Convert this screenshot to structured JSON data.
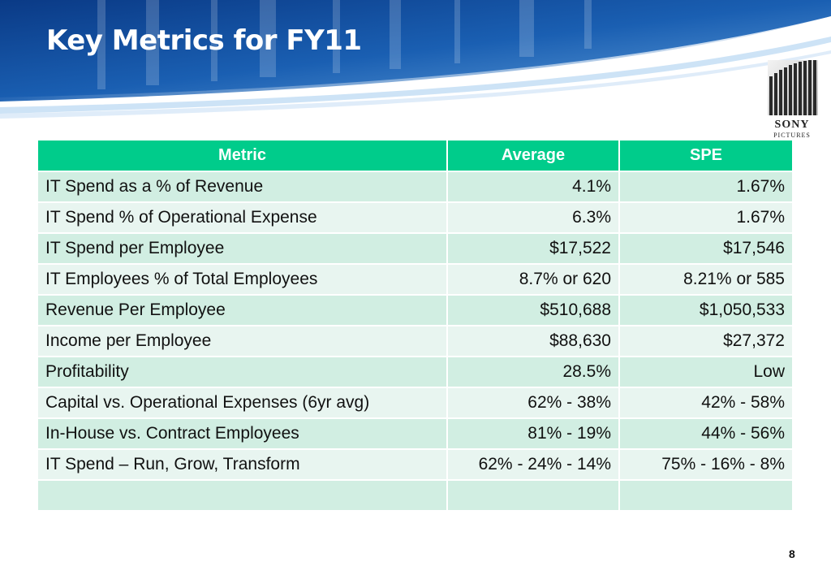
{
  "slide": {
    "title": "Key Metrics for FY11",
    "page_number": "8",
    "logo_text": "SONY",
    "logo_subtext": "PICTURES"
  },
  "table": {
    "headers": [
      "Metric",
      "Average",
      "SPE"
    ],
    "rows": [
      [
        "IT Spend as a % of Revenue",
        "4.1%",
        "1.67%"
      ],
      [
        "IT Spend % of Operational Expense",
        "6.3%",
        "1.67%"
      ],
      [
        "IT Spend per Employee",
        "$17,522",
        "$17,546"
      ],
      [
        "IT Employees % of Total Employees",
        "8.7% or 620",
        "8.21% or 585"
      ],
      [
        "Revenue Per Employee",
        "$510,688",
        "$1,050,533"
      ],
      [
        "Income per Employee",
        "$88,630",
        "$27,372"
      ],
      [
        "Profitability",
        "28.5%",
        "Low"
      ],
      [
        "Capital vs. Operational Expenses (6yr avg)",
        "62% - 38%",
        "42% - 58%"
      ],
      [
        "In-House vs. Contract Employees",
        "81% - 19%",
        "44% - 56%"
      ],
      [
        "IT Spend – Run, Grow, Transform",
        "62% - 24% - 14%",
        "75% - 16% - 8%"
      ],
      [
        "",
        "",
        ""
      ]
    ]
  },
  "colors": {
    "header_bg": "#00cc8b",
    "row_odd": "#d1eee2",
    "row_even": "#e8f5f0",
    "banner_dark": "#0b3e8a",
    "banner_light": "#3f86d0"
  },
  "icons": {
    "logo": "sony-pictures-logo"
  }
}
